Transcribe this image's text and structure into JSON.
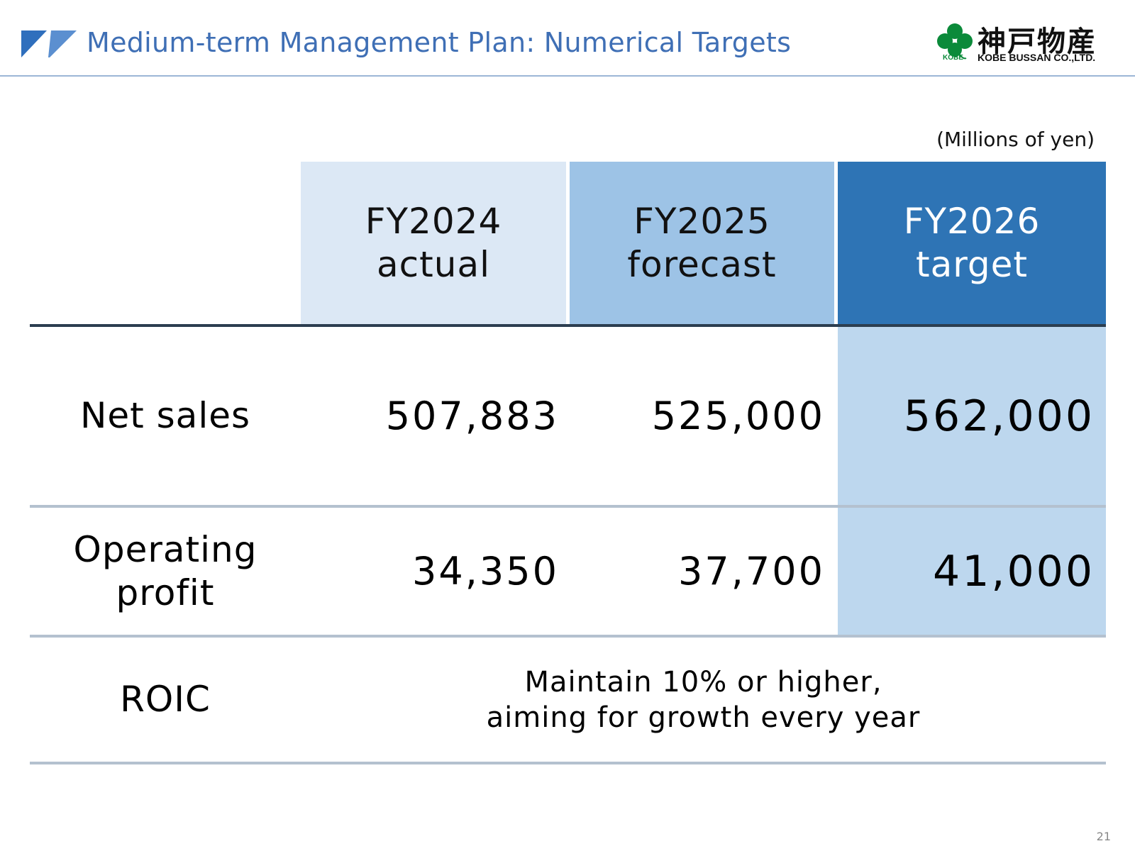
{
  "header": {
    "title": "Medium-term Management Plan: Numerical Targets",
    "accent_color": "#3f6fb5"
  },
  "logo": {
    "japanese_name": "神戸物産",
    "english_name": "KOBE BUSSAN CO.,LTD.",
    "badge_text": "KOBE",
    "icon": "clover-icon",
    "brand_color": "#0b8a3a"
  },
  "units": "(Millions of yen)",
  "table": {
    "columns": [
      {
        "line1": "FY2024",
        "line2": "actual",
        "color": "#dce8f5"
      },
      {
        "line1": "FY2025",
        "line2": "forecast",
        "color": "#9dc3e6"
      },
      {
        "line1": "FY2026",
        "line2": "target",
        "color": "#2e74b5"
      }
    ],
    "rows": [
      {
        "label": "Net sales",
        "values": [
          "507,883",
          "525,000",
          "562,000"
        ]
      },
      {
        "label_line1": "Operating",
        "label_line2": "profit",
        "values": [
          "34,350",
          "37,700",
          "41,000"
        ]
      },
      {
        "label": "ROIC",
        "note_line1": "Maintain 10% or higher,",
        "note_line2": "aiming for growth every year"
      }
    ]
  },
  "page_number": "21"
}
